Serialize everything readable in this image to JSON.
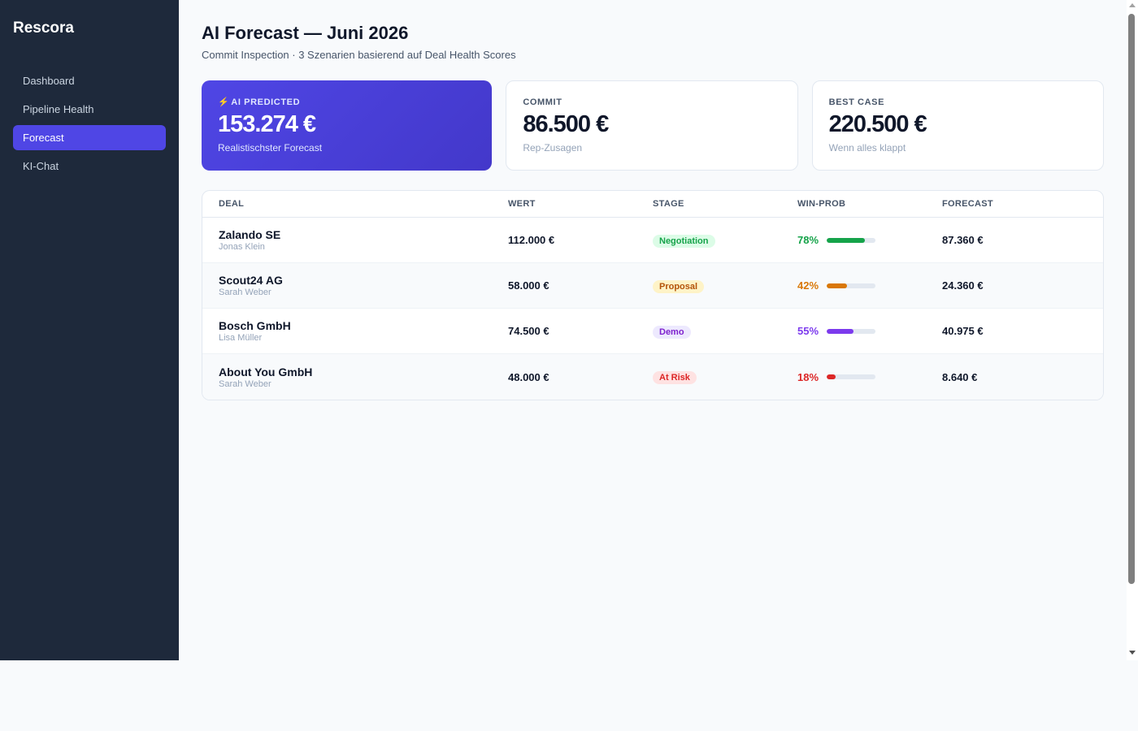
{
  "sidebar": {
    "brand": "Rescora",
    "items": [
      {
        "label": "Dashboard"
      },
      {
        "label": "Pipeline Health"
      },
      {
        "label": "Forecast"
      },
      {
        "label": "KI-Chat"
      }
    ]
  },
  "header": {
    "title": "AI Forecast — Juni 2026",
    "subtitle": "Commit Inspection · 3 Szenarien basierend auf Deal Health Scores"
  },
  "cards": [
    {
      "icon": "lightning-icon",
      "label": "AI PREDICTED",
      "value": "153.274 €",
      "sub": "Realistischster Forecast"
    },
    {
      "label": "COMMIT",
      "value": "86.500 €",
      "sub": "Rep-Zusagen"
    },
    {
      "label": "BEST CASE",
      "value": "220.500 €",
      "sub": "Wenn alles klappt"
    }
  ],
  "table": {
    "headers": {
      "deal": "DEAL",
      "wert": "WERT",
      "stage": "STAGE",
      "prob": "WIN-PROB",
      "forecast": "FORECAST"
    },
    "rows": [
      {
        "name": "Zalando SE",
        "owner": "Jonas Klein",
        "wert": "112.000 €",
        "stage": "Negotiation",
        "prob": "78%",
        "prob_value": 0.78,
        "forecast": "87.360 €"
      },
      {
        "name": "Scout24 AG",
        "owner": "Sarah Weber",
        "wert": "58.000 €",
        "stage": "Proposal",
        "prob": "42%",
        "prob_value": 0.42,
        "forecast": "24.360 €"
      },
      {
        "name": "Bosch GmbH",
        "owner": "Lisa Müller",
        "wert": "74.500 €",
        "stage": "Demo",
        "prob": "55%",
        "prob_value": 0.55,
        "forecast": "40.975 €"
      },
      {
        "name": "About You GmbH",
        "owner": "Sarah Weber",
        "wert": "48.000 €",
        "stage": "At Risk",
        "prob": "18%",
        "prob_value": 0.18,
        "forecast": "8.640 €"
      }
    ]
  },
  "colors": {
    "accent": "#4f46e5",
    "sidebar_bg": "#1e293b",
    "stage_negotiation": {
      "bg": "#dcfce7",
      "fg": "#16a34a"
    },
    "stage_proposal": {
      "bg": "#fef3c7",
      "fg": "#b45309"
    },
    "stage_demo": {
      "bg": "#ede9fe",
      "fg": "#7e22ce"
    },
    "stage_at_risk": {
      "bg": "#fee2e2",
      "fg": "#dc2626"
    },
    "prob_78": "#16a34a",
    "prob_42": "#d97706",
    "prob_55": "#7c3aed",
    "prob_18": "#dc2626"
  }
}
